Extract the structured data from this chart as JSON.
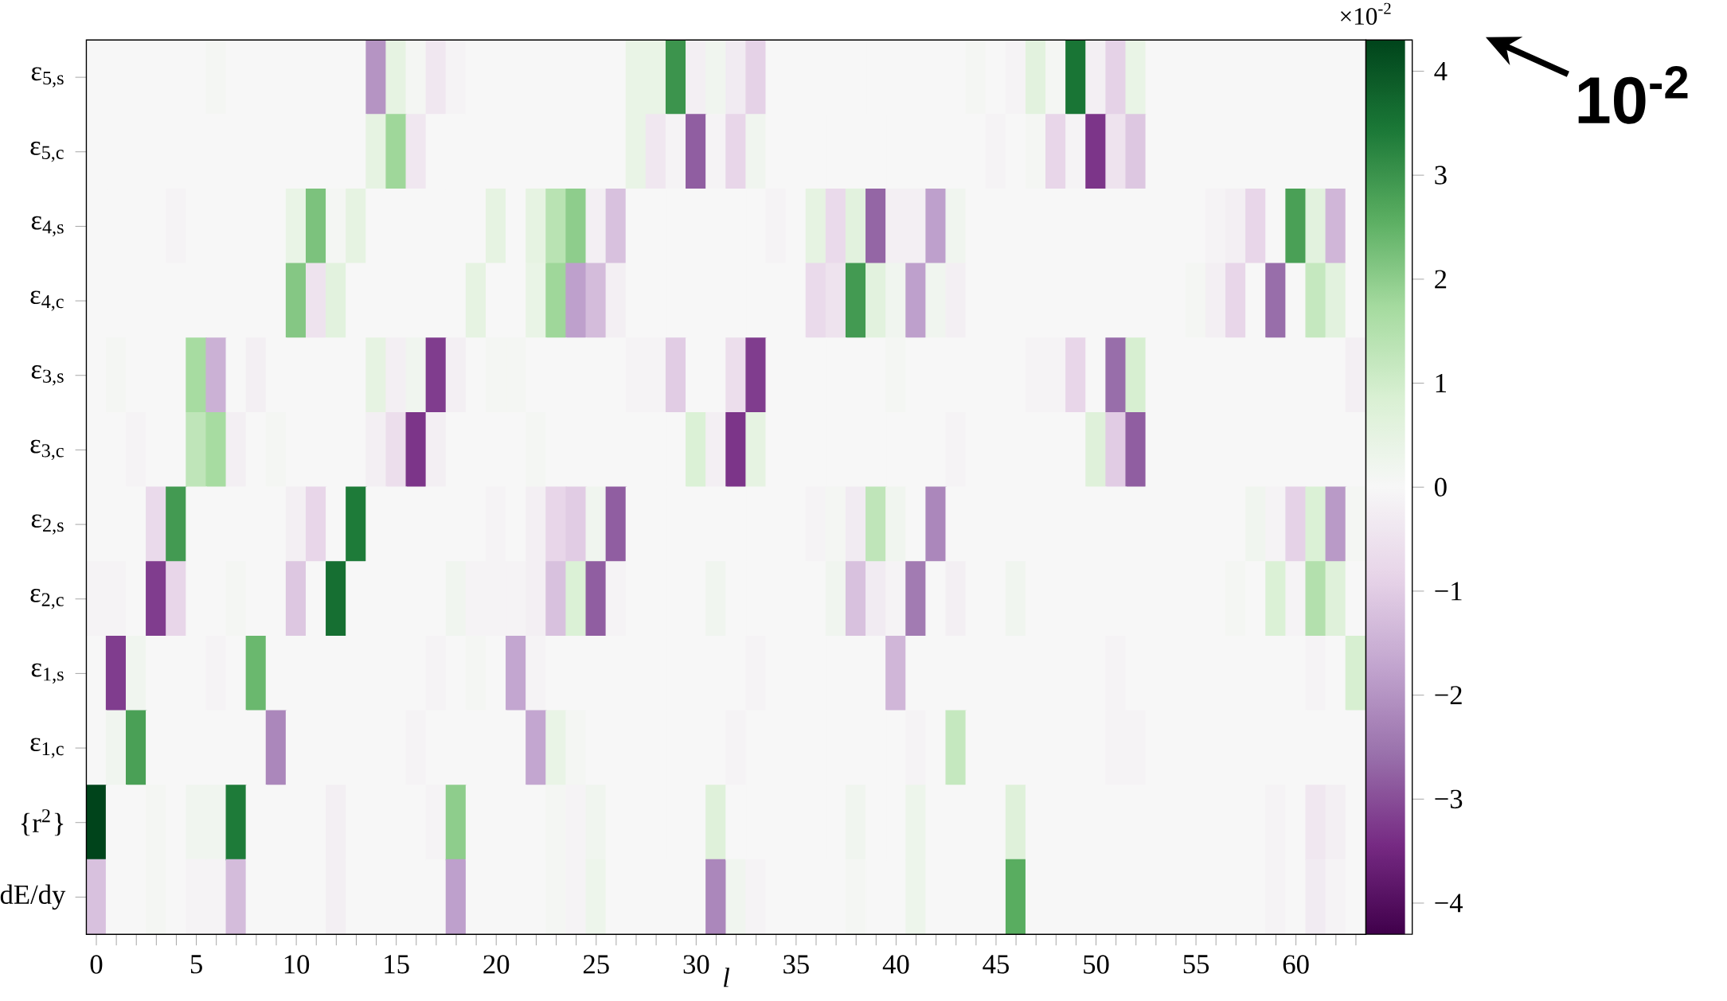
{
  "chart_data": {
    "type": "heatmap",
    "xlabel": "l",
    "clabel": "×10$^{-2}$",
    "annotations": [
      "10$^{-2}$"
    ],
    "categories": [
      "0",
      null,
      null,
      null,
      null,
      "5",
      null,
      null,
      null,
      null,
      "10",
      null,
      null,
      null,
      null,
      "15",
      null,
      null,
      null,
      null,
      "20",
      null,
      null,
      null,
      null,
      "25",
      null,
      null,
      null,
      null,
      "30",
      null,
      null,
      null,
      null,
      "35",
      null,
      null,
      null,
      null,
      "40",
      null,
      null,
      null,
      null,
      "45",
      null,
      null,
      null,
      null,
      "50",
      null,
      null,
      null,
      null,
      "55",
      null,
      null,
      null,
      null,
      "60",
      null,
      null,
      null
    ],
    "y_categories": [
      "ε$_{5,s}$",
      "ε$_{5,c}$",
      "ε$_{4,s}$",
      "ε$_{4,c}$",
      "ε$_{3,s}$",
      "ε$_{3,c}$",
      "ε$_{2,s}$",
      "ε$_{2,c}$",
      "ε$_{1,s}$",
      "ε$_{1,c}$",
      "{r$^{2}$}",
      "dE/dy"
    ],
    "clim": [
      -4.3,
      4.3
    ],
    "cticks": [
      {
        "value": -4,
        "label": "−4"
      },
      {
        "value": -3,
        "label": "−3"
      },
      {
        "value": -2,
        "label": "−2"
      },
      {
        "value": -1,
        "label": "−1"
      },
      0,
      1,
      2,
      3,
      4
    ],
    "cells": [
      [
        0,
        0,
        0,
        0,
        0,
        0,
        0.1,
        0,
        0,
        0,
        0,
        0,
        0,
        0,
        -2.0,
        0.5,
        0.1,
        -0.4,
        -0.1,
        0,
        0,
        0,
        0,
        0,
        0,
        0,
        0,
        0.4,
        0.4,
        3.0,
        -0.2,
        0.2,
        -0.3,
        -0.9,
        0,
        0,
        0,
        0,
        0,
        0,
        0,
        0,
        0,
        0,
        0.1,
        0,
        -0.1,
        0.6,
        0.1,
        3.5,
        -0.2,
        -0.9,
        0.4,
        0,
        0,
        0,
        0,
        0,
        0,
        0,
        0,
        0,
        0,
        0
      ],
      [
        0,
        0,
        0,
        0,
        0,
        0,
        0,
        0,
        0,
        0,
        0,
        0,
        0,
        0,
        0.5,
        1.8,
        -0.4,
        0,
        0,
        0,
        0,
        0,
        0,
        0,
        0,
        0,
        0,
        0.4,
        -0.4,
        -0.1,
        -2.8,
        -0.1,
        -0.8,
        0.2,
        0,
        0,
        0,
        0,
        0,
        0,
        0,
        0,
        0,
        0,
        0,
        -0.1,
        0,
        0.1,
        -0.8,
        -0.1,
        -3.3,
        -0.5,
        -1.1,
        0,
        0,
        0,
        0,
        0,
        0,
        0,
        0,
        0,
        0,
        0
      ],
      [
        0,
        0,
        0,
        0,
        -0.1,
        0,
        0,
        0,
        0,
        0,
        0.4,
        2.2,
        0.1,
        0.5,
        0,
        0,
        0,
        0,
        0,
        0,
        0.5,
        0,
        0.5,
        1.4,
        2.0,
        -0.2,
        -1.2,
        0,
        0,
        0,
        0,
        0,
        0,
        0,
        -0.1,
        0,
        0.5,
        -0.7,
        0.6,
        -2.7,
        -0.2,
        -0.2,
        -1.8,
        0.2,
        0,
        0,
        0,
        0,
        0,
        0,
        0,
        0,
        0,
        0,
        0,
        0,
        -0.1,
        -0.2,
        -0.8,
        0,
        2.8,
        0.6,
        -1.4,
        0
      ],
      [
        0,
        0,
        0,
        0,
        0,
        0,
        0,
        0,
        0,
        0,
        2.1,
        -0.5,
        0.6,
        0,
        0,
        0,
        0,
        0,
        0,
        0.5,
        0,
        0,
        0.4,
        1.8,
        -1.8,
        -1.3,
        -0.2,
        0,
        0,
        0,
        0,
        0,
        0,
        0,
        0,
        0,
        -0.7,
        -0.5,
        2.9,
        0.6,
        0.2,
        -1.8,
        0.2,
        -0.2,
        0,
        0,
        0,
        0,
        0,
        0,
        0,
        0,
        0,
        0,
        0,
        0.1,
        -0.2,
        -0.8,
        0,
        -2.6,
        0,
        1.2,
        0.6,
        0
      ],
      [
        0,
        0.1,
        0,
        0,
        0,
        1.7,
        -1.5,
        0,
        -0.2,
        0,
        0,
        0,
        0,
        0,
        0.5,
        -0.2,
        0.2,
        -3.2,
        -0.2,
        0,
        0.1,
        0.1,
        0,
        0,
        0,
        0,
        0,
        -0.1,
        -0.1,
        -1.0,
        0,
        0,
        -0.6,
        -3.2,
        0,
        0,
        0,
        0,
        0,
        0,
        0.1,
        0,
        0,
        0,
        0,
        0,
        0,
        -0.1,
        -0.1,
        -0.8,
        0,
        -2.6,
        0.9,
        0,
        0,
        0,
        0,
        0,
        0,
        0,
        0,
        0,
        0,
        -0.2
      ],
      [
        0,
        0,
        -0.1,
        0,
        0,
        1.3,
        1.7,
        -0.2,
        0,
        0.1,
        0,
        0,
        0,
        0,
        -0.2,
        -0.6,
        -3.3,
        -0.2,
        0,
        0,
        0,
        0,
        0.1,
        0,
        0,
        0,
        0,
        0,
        0,
        0,
        0.8,
        -0.2,
        -3.3,
        0.5,
        0,
        0,
        0,
        0,
        0,
        0,
        0,
        0,
        0,
        -0.1,
        0,
        0,
        0,
        0,
        0,
        0,
        0.7,
        -1.0,
        -2.8,
        0,
        0,
        0,
        0,
        0,
        0,
        0,
        0,
        0,
        0,
        0
      ],
      [
        0,
        0,
        0,
        -0.7,
        2.9,
        0,
        0,
        0,
        0,
        0,
        -0.2,
        -0.8,
        0,
        3.4,
        0,
        0,
        0,
        0,
        0,
        0,
        -0.1,
        0,
        -0.2,
        -0.8,
        -1.0,
        0.2,
        -2.8,
        0,
        0,
        0,
        0,
        0,
        0,
        0,
        0,
        0,
        -0.1,
        0.1,
        -0.3,
        1.3,
        0.2,
        0,
        -2.2,
        0,
        0,
        0,
        0,
        0,
        0,
        0,
        0,
        0,
        0,
        0,
        0,
        0,
        0,
        0,
        0.2,
        -0.1,
        -0.9,
        0.8,
        -1.9,
        0.1
      ],
      [
        -0.1,
        -0.1,
        0,
        -3.2,
        -0.8,
        0,
        0,
        0.1,
        0,
        0,
        -1.1,
        0,
        3.6,
        0,
        0,
        0,
        0,
        0,
        0.2,
        -0.1,
        -0.1,
        -0.1,
        -0.2,
        -1.2,
        0.8,
        -2.8,
        -0.1,
        0,
        0,
        0,
        0,
        0.2,
        0,
        0,
        0,
        0,
        0,
        0.2,
        -1.2,
        -0.3,
        -0.1,
        -2.4,
        0,
        -0.2,
        0,
        0,
        0.2,
        0,
        0,
        0,
        0,
        0,
        0,
        0,
        0,
        0,
        0,
        0.1,
        0,
        0.8,
        -0.1,
        1.5,
        0.7,
        0
      ],
      [
        0,
        -3.2,
        0.2,
        0,
        0,
        0,
        -0.1,
        0,
        2.4,
        0,
        0,
        0,
        0,
        0,
        0,
        0,
        0,
        -0.1,
        0,
        0.1,
        0,
        -1.7,
        -0.1,
        0,
        0,
        0,
        0,
        0,
        0,
        0,
        0,
        0,
        0,
        -0.1,
        0,
        0,
        0,
        0,
        0,
        0,
        -1.4,
        0,
        0,
        0,
        0,
        0,
        0,
        0,
        0,
        0,
        0,
        -0.1,
        0,
        0,
        0,
        0,
        0,
        0,
        0,
        0,
        0,
        -0.1,
        0,
        0.9
      ],
      [
        0,
        0.2,
        2.8,
        0,
        0,
        0,
        0,
        0,
        0,
        -2.2,
        0,
        0,
        0,
        0,
        0,
        0,
        -0.1,
        0,
        0,
        0,
        0,
        0,
        -1.7,
        0.4,
        0.1,
        0,
        0,
        0,
        0,
        0,
        0,
        0,
        -0.1,
        0,
        0,
        0,
        0,
        0,
        0,
        0,
        0,
        -0.1,
        0,
        1.2,
        0,
        0,
        0,
        0,
        0,
        0,
        0,
        -0.1,
        -0.1,
        0,
        0,
        0,
        0,
        0,
        0,
        0,
        0,
        0,
        0,
        0
      ],
      [
        4.3,
        0,
        0,
        0.1,
        0,
        0.2,
        0.2,
        3.4,
        0,
        0,
        0,
        0,
        -0.2,
        0,
        0,
        0,
        0,
        -0.1,
        2.0,
        0,
        0,
        0,
        0,
        0.1,
        -0.1,
        0.2,
        0,
        0,
        0,
        0,
        0,
        0.7,
        0,
        0,
        0,
        0,
        0,
        0,
        0.2,
        0,
        0,
        0.3,
        0,
        0,
        0,
        0,
        0.7,
        0,
        0,
        0,
        0,
        0,
        0,
        0,
        0,
        0,
        0,
        0,
        0,
        -0.1,
        0,
        -0.4,
        -0.2,
        0
      ],
      [
        -1.2,
        0,
        0,
        0.1,
        0,
        -0.1,
        -0.1,
        -1.3,
        0,
        0,
        0,
        0,
        -0.2,
        0,
        0,
        0,
        0,
        0,
        -1.8,
        0,
        0,
        0,
        0,
        0.1,
        -0.1,
        0.3,
        0,
        0,
        0,
        0,
        0,
        -2.2,
        0.2,
        -0.1,
        0,
        0,
        0,
        0,
        0.1,
        0,
        0,
        0.3,
        0,
        0,
        0,
        0,
        2.6,
        0,
        0,
        0,
        0,
        0,
        0,
        0,
        0,
        0,
        0,
        0,
        0,
        -0.1,
        0,
        -0.3,
        -0.1,
        0
      ]
    ]
  }
}
